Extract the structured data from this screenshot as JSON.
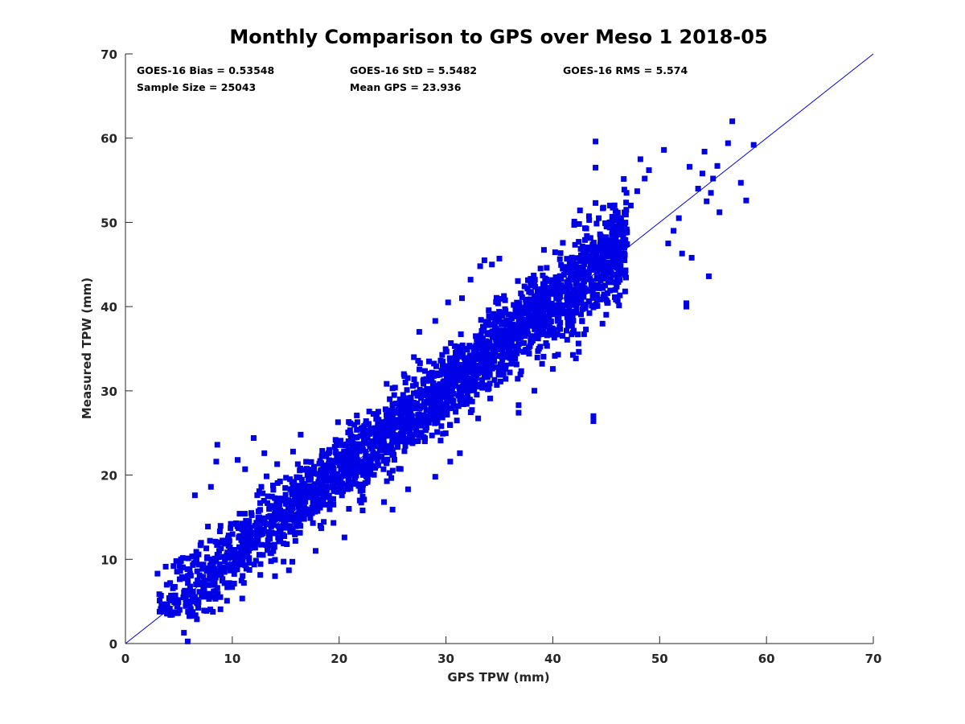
{
  "chart_data": {
    "type": "scatter",
    "title": "Monthly Comparison to GPS over Meso 1 2018-05",
    "xlabel": "GPS TPW (mm)",
    "ylabel": "Measured TPW (mm)",
    "xlim": [
      0,
      70
    ],
    "ylim": [
      0,
      70
    ],
    "xticks": [
      "0",
      "10",
      "20",
      "30",
      "40",
      "50",
      "60",
      "70"
    ],
    "yticks": [
      "0",
      "10",
      "20",
      "30",
      "40",
      "50",
      "60",
      "70"
    ],
    "grid": false,
    "legend": "none",
    "reference_line": {
      "type": "one-to-one",
      "x": [
        0,
        70
      ],
      "y": [
        0,
        70
      ]
    },
    "stats": {
      "bias": "GOES-16 Bias = 0.53548",
      "std": "GOES-16 StD = 5.5482",
      "rms": "GOES-16 RMS = 5.574",
      "sample_size": "Sample Size = 25043",
      "mean_gps": "Mean GPS = 23.936"
    },
    "series": [
      {
        "marker": "square",
        "color": "#0000e6",
        "note_dense_cloud": {
          "x_range": [
            3,
            47
          ],
          "relation": "y ≈ x + 0.5",
          "spread_std": 2.5,
          "n_plotted_sample": 2600
        },
        "points": [
          [
            3.0,
            8.3
          ],
          [
            3.2,
            5.1
          ],
          [
            3.5,
            3.8
          ],
          [
            4.2,
            3.4
          ],
          [
            4.5,
            9.2
          ],
          [
            5.2,
            10.0
          ],
          [
            6.5,
            17.6
          ],
          [
            8.0,
            18.6
          ],
          [
            8.5,
            21.6
          ],
          [
            8.6,
            23.6
          ],
          [
            10.5,
            21.8
          ],
          [
            11.2,
            20.7
          ],
          [
            12.0,
            24.4
          ],
          [
            13.0,
            22.6
          ],
          [
            14.2,
            21.3
          ],
          [
            16.4,
            24.8
          ],
          [
            14.0,
            8.0
          ],
          [
            15.3,
            8.7
          ],
          [
            17.8,
            11.0
          ],
          [
            20.5,
            12.6
          ],
          [
            22.2,
            15.8
          ],
          [
            24.2,
            16.8
          ],
          [
            25.0,
            15.9
          ],
          [
            25.0,
            30.3
          ],
          [
            27.0,
            34.0
          ],
          [
            27.5,
            37.0
          ],
          [
            29.0,
            38.3
          ],
          [
            30.2,
            40.5
          ],
          [
            31.5,
            41.0
          ],
          [
            32.3,
            43.2
          ],
          [
            33.2,
            44.8
          ],
          [
            33.6,
            45.5
          ],
          [
            34.3,
            45.0
          ],
          [
            35.0,
            45.7
          ],
          [
            31.0,
            31.3
          ],
          [
            30.4,
            21.6
          ],
          [
            29.0,
            19.8
          ],
          [
            31.3,
            22.6
          ],
          [
            29.5,
            24.1
          ],
          [
            36.8,
            27.4
          ],
          [
            36.8,
            28.3
          ],
          [
            38.5,
            37.5
          ],
          [
            40.0,
            32.6
          ],
          [
            40.5,
            34.3
          ],
          [
            42.0,
            49.7
          ],
          [
            44.3,
            50.5
          ],
          [
            44.0,
            52.3
          ],
          [
            44.0,
            56.5
          ],
          [
            44.0,
            59.6
          ],
          [
            43.8,
            26.4
          ],
          [
            43.8,
            27.0
          ],
          [
            45.3,
            44.2
          ],
          [
            46.0,
            43.5
          ],
          [
            46.9,
            53.5
          ],
          [
            47.3,
            52.0
          ],
          [
            47.9,
            53.7
          ],
          [
            48.2,
            57.5
          ],
          [
            48.6,
            55.2
          ],
          [
            49.0,
            56.2
          ],
          [
            50.4,
            58.6
          ],
          [
            50.8,
            47.5
          ],
          [
            51.3,
            49.0
          ],
          [
            51.8,
            50.5
          ],
          [
            52.1,
            46.3
          ],
          [
            52.5,
            40.0
          ],
          [
            52.5,
            40.4
          ],
          [
            52.8,
            56.6
          ],
          [
            53.0,
            45.8
          ],
          [
            53.6,
            54.0
          ],
          [
            54.0,
            55.8
          ],
          [
            54.2,
            58.4
          ],
          [
            54.4,
            52.5
          ],
          [
            54.6,
            43.6
          ],
          [
            54.8,
            53.5
          ],
          [
            55.0,
            55.2
          ],
          [
            55.4,
            56.7
          ],
          [
            55.6,
            51.2
          ],
          [
            56.4,
            59.4
          ],
          [
            56.8,
            62.0
          ],
          [
            57.6,
            54.7
          ],
          [
            58.1,
            52.6
          ],
          [
            58.8,
            59.2
          ]
        ]
      }
    ]
  }
}
